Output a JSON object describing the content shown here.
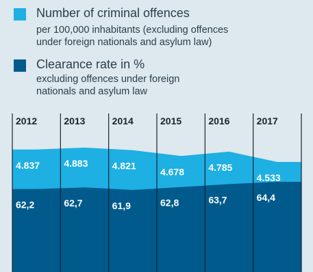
{
  "legend": [
    {
      "title": "Number of criminal offences",
      "lines": [
        "per 100,000 inhabitants (excluding offences",
        "under foreign nationals and asylum law)"
      ],
      "color": "#1eafe3"
    },
    {
      "title": "Clearance rate in %",
      "lines": [
        "excluding offences under foreign",
        "nationals and asylum law"
      ],
      "color": "#005a8c"
    }
  ],
  "chart_data": {
    "type": "area",
    "categories": [
      "2012",
      "2013",
      "2014",
      "2015",
      "2016",
      "2017"
    ],
    "series": [
      {
        "name": "Number of criminal offences",
        "values": [
          4837,
          4883,
          4821,
          4678,
          4785,
          4533
        ],
        "labels": [
          "4.837",
          "4.883",
          "4.821",
          "4.678",
          "4.785",
          "4.533"
        ],
        "color": "#1eafe3"
      },
      {
        "name": "Clearance rate in %",
        "values": [
          62.2,
          62.7,
          61.9,
          62.8,
          63.7,
          64.4
        ],
        "labels": [
          "62,2",
          "62,7",
          "61,9",
          "62,8",
          "63,7",
          "64,4"
        ],
        "color": "#005a8c"
      }
    ]
  }
}
